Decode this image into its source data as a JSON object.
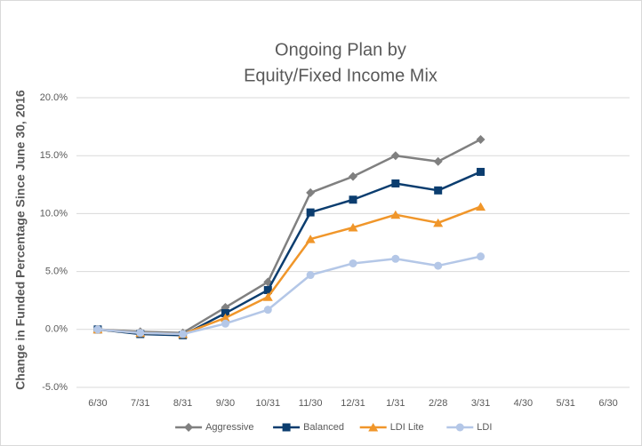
{
  "chart_data": {
    "type": "line",
    "title": [
      "Ongoing Plan by",
      "Equity/Fixed Income Mix"
    ],
    "y_label": "Change in Funded Percentage Since June 30, 2016",
    "categories": [
      "6/30",
      "7/31",
      "8/31",
      "9/30",
      "10/31",
      "11/30",
      "12/31",
      "1/31",
      "2/28",
      "3/31",
      "4/30",
      "5/31",
      "6/30"
    ],
    "series": [
      {
        "name": "Aggressive",
        "color": "#808080",
        "marker": "diamond",
        "values": [
          0,
          -0.2,
          -0.3,
          1.9,
          4.1,
          11.8,
          13.2,
          15.0,
          14.5,
          16.4,
          null,
          null,
          null
        ]
      },
      {
        "name": "Balanced",
        "color": "#0b3d6f",
        "marker": "square",
        "values": [
          0,
          -0.4,
          -0.5,
          1.4,
          3.4,
          10.1,
          11.2,
          12.6,
          12.0,
          13.6,
          null,
          null,
          null
        ]
      },
      {
        "name": "LDI Lite",
        "color": "#f0962a",
        "marker": "triangle",
        "values": [
          0,
          -0.3,
          -0.4,
          1.0,
          2.8,
          7.8,
          8.8,
          9.9,
          9.2,
          10.6,
          null,
          null,
          null
        ]
      },
      {
        "name": "LDI",
        "color": "#b4c7e7",
        "marker": "circle",
        "values": [
          0,
          -0.3,
          -0.4,
          0.5,
          1.7,
          4.7,
          5.7,
          6.1,
          5.5,
          6.3,
          null,
          null,
          null
        ]
      }
    ],
    "ylim": [
      -5,
      20
    ],
    "yticks": [
      {
        "value": -5,
        "label": "-5.0%"
      },
      {
        "value": 0,
        "label": "0.0%"
      },
      {
        "value": 5,
        "label": "5.0%"
      },
      {
        "value": 10,
        "label": "10.0%"
      },
      {
        "value": 15,
        "label": "15.0%"
      },
      {
        "value": 20,
        "label": "20.0%"
      }
    ],
    "grid": true,
    "legend": "bottom"
  }
}
